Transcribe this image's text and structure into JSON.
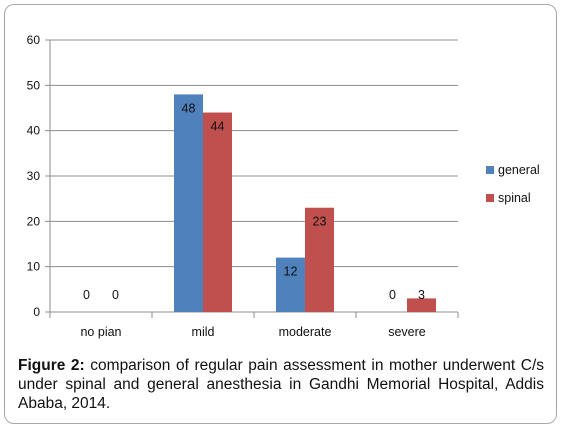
{
  "chart_data": {
    "type": "bar",
    "categories": [
      "no pian",
      "mild",
      "moderate",
      "severe"
    ],
    "series": [
      {
        "name": "general",
        "values": [
          0,
          48,
          12,
          0
        ],
        "color": "#4F81BD"
      },
      {
        "name": "spinal",
        "values": [
          0,
          44,
          23,
          3
        ],
        "color": "#C0504D"
      }
    ],
    "ylim": [
      0,
      60
    ],
    "yticks": [
      0,
      10,
      20,
      30,
      40,
      50,
      60
    ],
    "grid": true,
    "legend_position": "right",
    "data_labels": true
  },
  "caption": {
    "label": "Figure 2:",
    "text": "comparison of regular pain assessment in mother underwent C/s under spinal and general anesthesia in Gandhi Memorial Hospital, Addis Ababa, 2014."
  }
}
